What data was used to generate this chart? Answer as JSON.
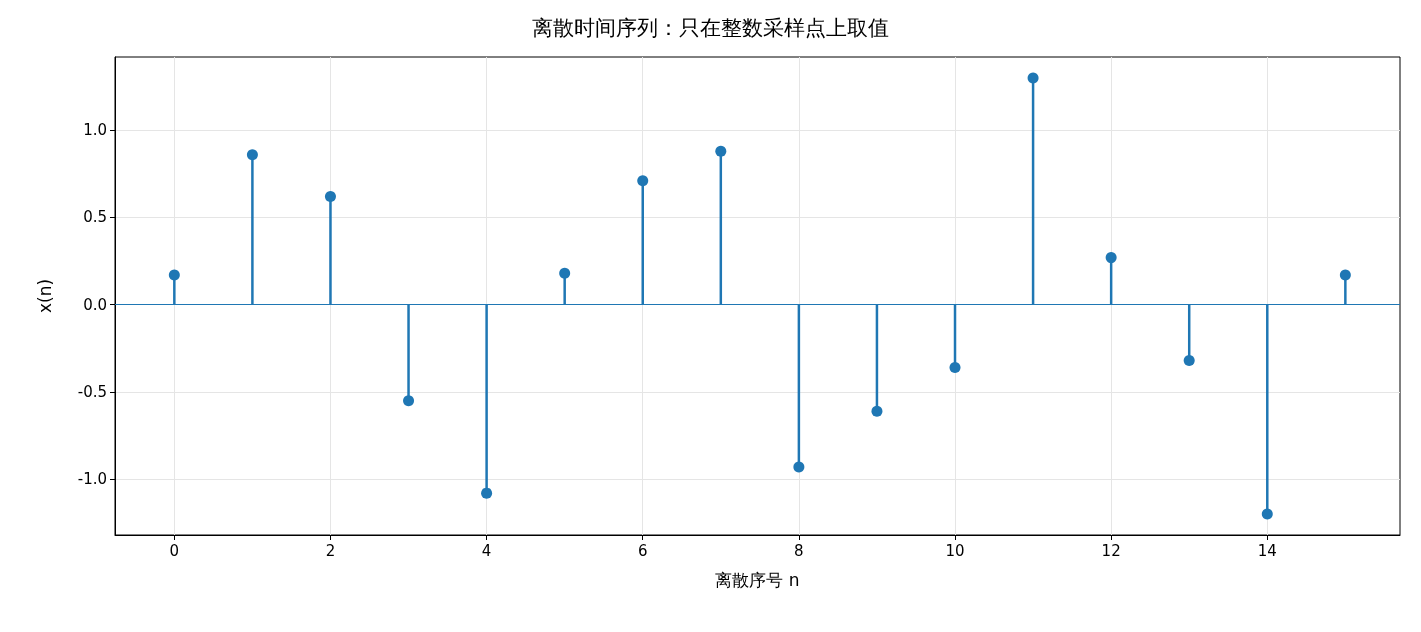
{
  "chart_data": {
    "type": "lollipop",
    "title": "离散时间序列：只在整数采样点上取值",
    "xlabel": "离散序号 n",
    "ylabel": "x(n)",
    "x": [
      0,
      1,
      2,
      3,
      4,
      5,
      6,
      7,
      8,
      9,
      10,
      11,
      12,
      13,
      14,
      15
    ],
    "series": [
      {
        "color": "#1f77b4",
        "values": [
          0.17,
          0.86,
          0.62,
          -0.55,
          -1.08,
          0.18,
          0.71,
          0.88,
          -0.93,
          -0.61,
          -0.36,
          1.3,
          0.27,
          -0.32,
          -1.2,
          0.17
        ]
      }
    ],
    "xlim": [
      -0.76,
      15.7
    ],
    "xticks": [
      0,
      2,
      4,
      6,
      8,
      10,
      12,
      14
    ],
    "ylim": [
      -1.32,
      1.42
    ],
    "yticks": [
      {
        "value": -1,
        "label": "-1.0"
      },
      {
        "value": -0.5,
        "label": "-0.5"
      },
      {
        "value": 0,
        "label": "0.0"
      },
      {
        "value": 0.5,
        "label": "0.5"
      },
      {
        "value": 1,
        "label": "1.0"
      }
    ],
    "ref_lines": [
      {
        "axis": "y",
        "value": 0,
        "color": "#1f77b4"
      }
    ],
    "grid": true,
    "marker": "circle"
  }
}
